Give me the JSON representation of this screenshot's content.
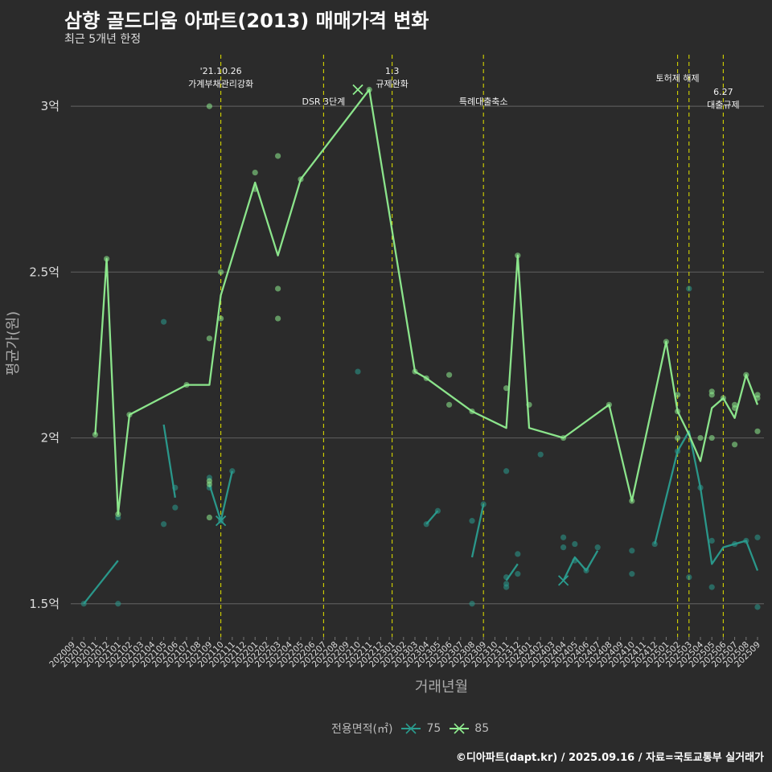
{
  "chart_data": {
    "type": "line",
    "title": "삼향 골드디움 아파트(2013) 매매가격 변화",
    "subtitle": "최근 5개년 한정",
    "xlabel": "거래년월",
    "ylabel": "평균가(원)",
    "ylim": [
      1.4,
      3.17
    ],
    "yticks": [
      {
        "value": 1.5,
        "label": "1.5억"
      },
      {
        "value": 2.0,
        "label": "2억"
      },
      {
        "value": 2.5,
        "label": "2.5억"
      },
      {
        "value": 3.0,
        "label": "3억"
      }
    ],
    "categories": [
      "202009",
      "202010",
      "202011",
      "202012",
      "202101",
      "202102",
      "202103",
      "202104",
      "202105",
      "202106",
      "202107",
      "202108",
      "202109",
      "202110",
      "202111",
      "202112",
      "202201",
      "202202",
      "202203",
      "202204",
      "202205",
      "202206",
      "202207",
      "202208",
      "202209",
      "202210",
      "202211",
      "202212",
      "202301",
      "202302",
      "202303",
      "202304",
      "202305",
      "202306",
      "202307",
      "202308",
      "202309",
      "202310",
      "202311",
      "202312",
      "202401",
      "202402",
      "202403",
      "202404",
      "202405",
      "202406",
      "202407",
      "202408",
      "202409",
      "202410",
      "202411",
      "202412",
      "202501",
      "202502",
      "202503",
      "202504",
      "202505",
      "202506",
      "202507",
      "202508",
      "202509"
    ],
    "grid": true,
    "legend_title": "전용면적(㎡)",
    "legend_position": "bottom",
    "series": [
      {
        "name": "75",
        "color": "#2a9d8f",
        "segments": [
          [
            [
              "202010",
              1.5
            ],
            [
              "202101",
              1.63
            ]
          ],
          [
            [
              "202105",
              2.04
            ],
            [
              "202106",
              1.82
            ]
          ],
          [
            [
              "202109",
              1.86
            ],
            [
              "202110",
              1.75
            ],
            [
              "202111",
              1.9
            ]
          ],
          [
            [
              "202304",
              1.74
            ],
            [
              "202305",
              1.78
            ]
          ],
          [
            [
              "202308",
              1.64
            ],
            [
              "202309",
              1.8
            ]
          ],
          [
            [
              "202311",
              1.57
            ],
            [
              "202312",
              1.62
            ]
          ],
          [
            [
              "202404",
              1.57
            ],
            [
              "202405",
              1.64
            ],
            [
              "202406",
              1.6
            ],
            [
              "202407",
              1.66
            ]
          ],
          [
            [
              "202412",
              1.68
            ],
            [
              "202502",
              1.96
            ],
            [
              "202503",
              2.02
            ],
            [
              "202504",
              1.85
            ],
            [
              "202505",
              1.62
            ],
            [
              "202506",
              1.67
            ],
            [
              "202507",
              1.68
            ],
            [
              "202508",
              1.69
            ],
            [
              "202509",
              1.6
            ]
          ]
        ],
        "points": [
          [
            "202010",
            1.5
          ],
          [
            "202101",
            1.76
          ],
          [
            "202101",
            1.5
          ],
          [
            "202105",
            2.35
          ],
          [
            "202105",
            1.74
          ],
          [
            "202106",
            1.85
          ],
          [
            "202106",
            1.79
          ],
          [
            "202109",
            1.88
          ],
          [
            "202109",
            1.85
          ],
          [
            "202110",
            1.75
          ],
          [
            "202111",
            1.9
          ],
          [
            "202210",
            2.2
          ],
          [
            "202304",
            1.74
          ],
          [
            "202305",
            1.78
          ],
          [
            "202308",
            1.75
          ],
          [
            "202308",
            1.5
          ],
          [
            "202309",
            1.8
          ],
          [
            "202311",
            1.9
          ],
          [
            "202311",
            1.58
          ],
          [
            "202311",
            1.56
          ],
          [
            "202311",
            1.55
          ],
          [
            "202312",
            1.59
          ],
          [
            "202312",
            1.65
          ],
          [
            "202402",
            1.95
          ],
          [
            "202404",
            1.7
          ],
          [
            "202404",
            1.67
          ],
          [
            "202405",
            1.68
          ],
          [
            "202405",
            1.63
          ],
          [
            "202406",
            1.6
          ],
          [
            "202407",
            1.67
          ],
          [
            "202410",
            1.66
          ],
          [
            "202410",
            1.59
          ],
          [
            "202412",
            1.68
          ],
          [
            "202502",
            1.96
          ],
          [
            "202503",
            2.45
          ],
          [
            "202503",
            1.58
          ],
          [
            "202504",
            1.85
          ],
          [
            "202505",
            1.69
          ],
          [
            "202505",
            1.55
          ],
          [
            "202507",
            1.68
          ],
          [
            "202508",
            1.69
          ],
          [
            "202509",
            1.7
          ],
          [
            "202509",
            1.49
          ]
        ],
        "markers_x": [
          [
            "202110",
            1.75
          ],
          [
            "202404",
            1.57
          ]
        ]
      },
      {
        "name": "85",
        "color": "#90ee90",
        "segments": [
          [
            [
              "202011",
              2.01
            ],
            [
              "202012",
              2.54
            ],
            [
              "202101",
              1.77
            ],
            [
              "202102",
              2.07
            ],
            [
              "202107",
              2.16
            ],
            [
              "202109",
              2.16
            ],
            [
              "202110",
              2.43
            ],
            [
              "202201",
              2.77
            ],
            [
              "202203",
              2.55
            ],
            [
              "202205",
              2.78
            ],
            [
              "202211",
              3.05
            ],
            [
              "202303",
              2.2
            ],
            [
              "202304",
              2.18
            ],
            [
              "202308",
              2.08
            ],
            [
              "202311",
              2.03
            ],
            [
              "202312",
              2.55
            ],
            [
              "202401",
              2.03
            ],
            [
              "202404",
              2.0
            ],
            [
              "202408",
              2.1
            ],
            [
              "202410",
              1.81
            ],
            [
              "202501",
              2.29
            ],
            [
              "202502",
              2.08
            ],
            [
              "202503",
              2.01
            ],
            [
              "202504",
              1.93
            ],
            [
              "202505",
              2.09
            ],
            [
              "202506",
              2.12
            ],
            [
              "202507",
              2.06
            ],
            [
              "202508",
              2.19
            ],
            [
              "202509",
              2.1
            ]
          ]
        ],
        "points": [
          [
            "202011",
            2.01
          ],
          [
            "202012",
            2.54
          ],
          [
            "202101",
            1.77
          ],
          [
            "202102",
            2.07
          ],
          [
            "202107",
            2.16
          ],
          [
            "202109",
            3.0
          ],
          [
            "202109",
            2.3
          ],
          [
            "202109",
            1.87
          ],
          [
            "202109",
            1.86
          ],
          [
            "202109",
            1.76
          ],
          [
            "202110",
            2.5
          ],
          [
            "202110",
            2.36
          ],
          [
            "202201",
            2.8
          ],
          [
            "202201",
            2.75
          ],
          [
            "202203",
            2.85
          ],
          [
            "202203",
            2.45
          ],
          [
            "202203",
            2.36
          ],
          [
            "202205",
            2.78
          ],
          [
            "202211",
            3.05
          ],
          [
            "202303",
            2.2
          ],
          [
            "202304",
            2.18
          ],
          [
            "202306",
            2.19
          ],
          [
            "202306",
            2.1
          ],
          [
            "202308",
            2.08
          ],
          [
            "202311",
            2.15
          ],
          [
            "202312",
            2.55
          ],
          [
            "202401",
            2.1
          ],
          [
            "202404",
            2.0
          ],
          [
            "202408",
            2.1
          ],
          [
            "202410",
            1.81
          ],
          [
            "202501",
            2.29
          ],
          [
            "202502",
            2.13
          ],
          [
            "202502",
            2.08
          ],
          [
            "202502",
            2.0
          ],
          [
            "202504",
            2.0
          ],
          [
            "202505",
            2.14
          ],
          [
            "202505",
            2.13
          ],
          [
            "202505",
            2.0
          ],
          [
            "202506",
            2.12
          ],
          [
            "202507",
            2.1
          ],
          [
            "202507",
            2.09
          ],
          [
            "202507",
            1.98
          ],
          [
            "202508",
            2.19
          ],
          [
            "202509",
            2.13
          ],
          [
            "202509",
            2.12
          ],
          [
            "202509",
            2.02
          ]
        ],
        "markers_x": [
          [
            "202210",
            3.05
          ]
        ]
      }
    ],
    "annotations": [
      {
        "x": "202110",
        "lines": [
          "'21.10.26",
          "가계부채관리강화"
        ],
        "row": 0
      },
      {
        "x": "202207",
        "lines": [
          "DSR 3단계"
        ],
        "row": 2
      },
      {
        "x": "202301",
        "lines": [
          "1.3",
          "규제완화"
        ],
        "row": 0
      },
      {
        "x": "202309",
        "lines": [
          "특례대출축소"
        ],
        "row": 2
      },
      {
        "x": "202502",
        "lines": [
          "토허제 해제"
        ],
        "row": 1
      },
      {
        "x": "202503",
        "lines": [],
        "row": 1
      },
      {
        "x": "202506",
        "lines": [
          "6.27",
          "대출규제"
        ],
        "row": 3
      }
    ]
  },
  "caption": "©디아파트(dapt.kr) / 2025.09.16 / 자료=국토교통부 실거래가"
}
